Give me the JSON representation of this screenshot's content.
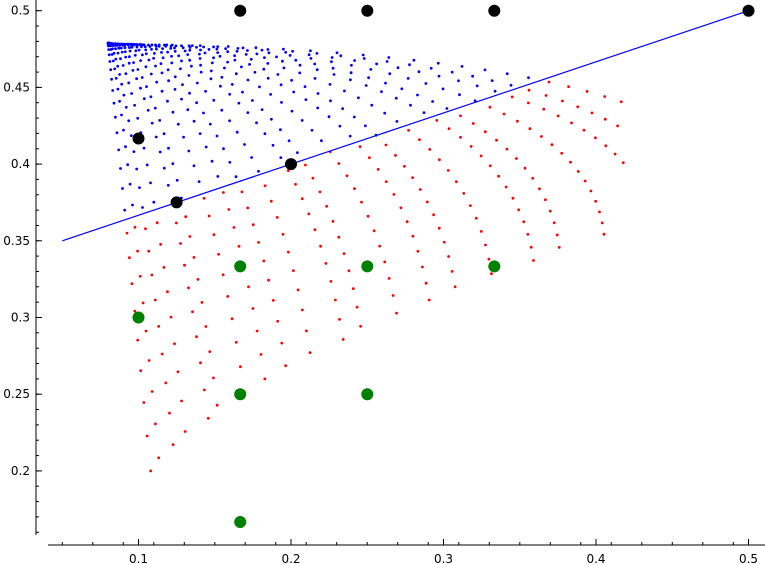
{
  "chart_data": {
    "type": "scatter",
    "title": "",
    "xlabel": "",
    "ylabel": "",
    "xlim": [
      0.05,
      0.5
    ],
    "ylim": [
      0.15,
      0.5
    ],
    "grid": false,
    "x_ticks": [
      {
        "value": 0.1,
        "label": "0.1"
      },
      {
        "value": 0.2,
        "label": "0.2"
      },
      {
        "value": 0.3,
        "label": "0.3"
      },
      {
        "value": 0.4,
        "label": "0.4"
      },
      {
        "value": 0.5,
        "label": "0.5"
      }
    ],
    "y_ticks": [
      {
        "value": 0.2,
        "label": "0.2"
      },
      {
        "value": 0.25,
        "label": "0.25"
      },
      {
        "value": 0.3,
        "label": "0.3"
      },
      {
        "value": 0.35,
        "label": "0.35"
      },
      {
        "value": 0.4,
        "label": "0.4"
      },
      {
        "value": 0.45,
        "label": "0.45"
      },
      {
        "value": 0.5,
        "label": "0.5"
      }
    ],
    "line": {
      "name": "reference line",
      "color": "#0000ff",
      "points": [
        [
          0.05,
          0.35
        ],
        [
          0.5,
          0.5
        ]
      ]
    },
    "dot_fan": {
      "description": "families of small points; blue when above the reference line, red when below",
      "color_above": "#0000ff",
      "color_below": "#ff0000",
      "families": [
        [
          0.08,
          0.4797
        ],
        [
          0.0916,
          0.4727
        ],
        [
          0.1033,
          0.4656
        ],
        [
          0.1149,
          0.4585
        ],
        [
          0.1265,
          0.4514
        ],
        [
          0.1381,
          0.4443
        ],
        [
          0.1498,
          0.4372
        ],
        [
          0.1614,
          0.4301
        ],
        [
          0.173,
          0.423
        ],
        [
          0.1846,
          0.4159
        ],
        [
          0.1963,
          0.4088
        ],
        [
          0.2079,
          0.4017
        ],
        [
          0.2195,
          0.3946
        ],
        [
          0.2311,
          0.3875
        ],
        [
          0.2428,
          0.3804
        ],
        [
          0.2544,
          0.3733
        ],
        [
          0.266,
          0.3662
        ],
        [
          0.2776,
          0.3591
        ],
        [
          0.2893,
          0.352
        ],
        [
          0.3009,
          0.3449
        ],
        [
          0.3125,
          0.3378
        ],
        [
          0.3241,
          0.3307
        ],
        [
          0.3358,
          0.3236
        ],
        [
          0.3474,
          0.3165
        ],
        [
          0.359,
          0.3094
        ],
        [
          0.3706,
          0.3023
        ],
        [
          0.3823,
          0.2952
        ],
        [
          0.3939,
          0.2881
        ],
        [
          0.4055,
          0.281
        ],
        [
          0.4171,
          0.2739
        ],
        [
          0.4288,
          0.2668
        ],
        [
          0.4404,
          0.2597
        ],
        [
          0.452,
          0.2526
        ],
        [
          0.4636,
          0.2455
        ],
        [
          0.4753,
          0.2384
        ],
        [
          0.4869,
          0.2313
        ]
      ],
      "red_arc_tips": [
        [
          0.108,
          0.177
        ],
        [
          0.115,
          0.1765
        ],
        [
          0.122,
          0.1765
        ],
        [
          0.13,
          0.177
        ],
        [
          0.138,
          0.178
        ],
        [
          0.146,
          0.1795
        ],
        [
          0.154,
          0.181
        ],
        [
          0.162,
          0.1825
        ],
        [
          0.17,
          0.1845
        ],
        [
          0.178,
          0.186
        ],
        [
          0.186,
          0.188
        ]
      ]
    },
    "series": [
      {
        "name": "black points",
        "color": "#000000",
        "points": [
          [
            0.1667,
            0.5
          ],
          [
            0.25,
            0.5
          ],
          [
            0.3333,
            0.5
          ],
          [
            0.5,
            0.5
          ],
          [
            0.1,
            0.4167
          ],
          [
            0.2,
            0.4
          ],
          [
            0.125,
            0.375
          ]
        ]
      },
      {
        "name": "green points",
        "color": "#008000",
        "points": [
          [
            0.1667,
            0.3333
          ],
          [
            0.25,
            0.3333
          ],
          [
            0.3333,
            0.3333
          ],
          [
            0.1,
            0.3
          ],
          [
            0.1667,
            0.25
          ],
          [
            0.25,
            0.25
          ],
          [
            0.1667,
            0.1667
          ]
        ]
      }
    ]
  }
}
